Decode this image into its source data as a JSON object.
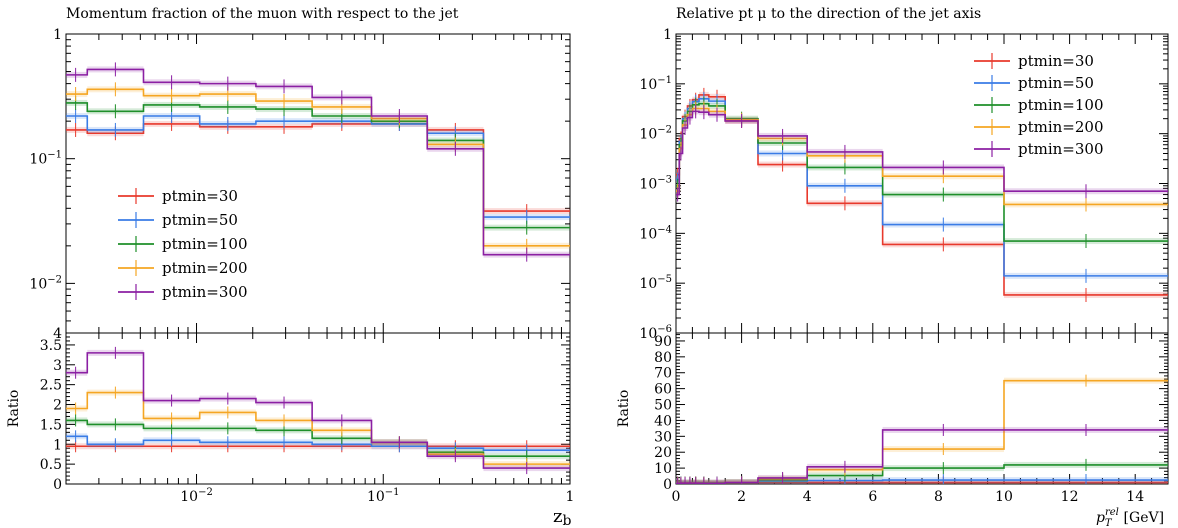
{
  "chart_data": [
    {
      "type": "line",
      "title": "Momentum fraction of the muon with respect to the jet",
      "xlabel": "z_b",
      "ylabel": "",
      "ratio_ylabel": "Ratio",
      "xscale": "log",
      "yscale": "log",
      "xlim": [
        0.002,
        1
      ],
      "ylim": [
        0.004,
        1
      ],
      "ratio_ylim": [
        0,
        3.8
      ],
      "legend_position": "middle-left",
      "x_ticks": [
        "10^-2",
        "10^-1",
        "1"
      ],
      "y_ticks": [
        "10^-2",
        "10^-1",
        "1",
        "4"
      ],
      "ratio_y_ticks": [
        "0",
        "0.5",
        "1",
        "1.5",
        "2",
        "2.5",
        "3",
        "3.5"
      ],
      "bin_edges": [
        0.00195,
        0.0026,
        0.0052,
        0.0104,
        0.0208,
        0.0416,
        0.0865,
        0.172,
        0.344,
        1.0
      ],
      "series": [
        {
          "name": "ptmin=30",
          "color": "#e8392c",
          "values": [
            0.17,
            0.16,
            0.19,
            0.18,
            0.18,
            0.19,
            0.19,
            0.17,
            0.038
          ],
          "ratio": [
            0.95,
            0.95,
            0.95,
            0.95,
            0.95,
            0.95,
            0.95,
            0.95,
            0.95
          ]
        },
        {
          "name": "ptmin=50",
          "color": "#3a7ce6",
          "values": [
            0.22,
            0.17,
            0.22,
            0.19,
            0.2,
            0.2,
            0.19,
            0.16,
            0.034
          ],
          "ratio": [
            1.2,
            1.0,
            1.1,
            1.05,
            1.05,
            1.0,
            0.95,
            0.9,
            0.85
          ]
        },
        {
          "name": "ptmin=100",
          "color": "#1e8f2a",
          "values": [
            0.28,
            0.24,
            0.27,
            0.26,
            0.25,
            0.22,
            0.2,
            0.14,
            0.028
          ],
          "ratio": [
            1.6,
            1.5,
            1.4,
            1.4,
            1.35,
            1.15,
            1.05,
            0.8,
            0.7
          ]
        },
        {
          "name": "ptmin=200",
          "color": "#f5a623",
          "values": [
            0.33,
            0.36,
            0.32,
            0.33,
            0.29,
            0.26,
            0.21,
            0.13,
            0.02
          ],
          "ratio": [
            1.9,
            2.3,
            1.65,
            1.8,
            1.6,
            1.35,
            1.05,
            0.75,
            0.5
          ]
        },
        {
          "name": "ptmin=300",
          "color": "#8b1fa3",
          "values": [
            0.47,
            0.52,
            0.41,
            0.4,
            0.38,
            0.31,
            0.22,
            0.12,
            0.017
          ],
          "ratio": [
            2.8,
            3.3,
            2.1,
            2.15,
            2.05,
            1.6,
            1.05,
            0.7,
            0.4
          ]
        }
      ]
    },
    {
      "type": "line",
      "title": "Relative pt μ to the direction of the jet axis",
      "xlabel": "p_T^rel [GeV]",
      "ylabel": "",
      "ratio_ylabel": "Ratio",
      "xscale": "linear",
      "yscale": "log",
      "xlim": [
        0,
        15
      ],
      "ylim": [
        1e-06,
        1
      ],
      "ratio_ylim": [
        0,
        95
      ],
      "legend_position": "top-right",
      "x_ticks": [
        "0",
        "2",
        "4",
        "6",
        "8",
        "10",
        "12",
        "14"
      ],
      "y_ticks": [
        "1",
        "10^-1",
        "10^-2",
        "10^-3",
        "10^-4",
        "10^-5",
        "10^-6"
      ],
      "ratio_y_ticks": [
        "0",
        "10",
        "20",
        "30",
        "40",
        "50",
        "60",
        "70",
        "80",
        "90"
      ],
      "bin_edges": [
        0,
        0.1,
        0.2,
        0.35,
        0.5,
        0.7,
        1.0,
        1.5,
        2.5,
        4.0,
        6.3,
        10.0,
        15.0
      ],
      "series": [
        {
          "name": "ptmin=30",
          "color": "#e8392c",
          "values": [
            0.0015,
            0.008,
            0.022,
            0.036,
            0.048,
            0.06,
            0.055,
            0.018,
            0.0024,
            0.0004,
            6e-05,
            5.8e-06
          ],
          "ratio": [
            1,
            1,
            1,
            1,
            1,
            1,
            1,
            1,
            1,
            1,
            1,
            1
          ]
        },
        {
          "name": "ptmin=50",
          "color": "#3a7ce6",
          "values": [
            0.0012,
            0.007,
            0.02,
            0.032,
            0.044,
            0.05,
            0.045,
            0.019,
            0.004,
            0.0009,
            0.00015,
            1.4e-05
          ],
          "ratio": [
            0.8,
            0.9,
            0.9,
            0.9,
            0.9,
            0.85,
            0.85,
            1.0,
            1.7,
            2.2,
            2.5,
            2.5
          ]
        },
        {
          "name": "ptmin=100",
          "color": "#1e8f2a",
          "values": [
            0.0009,
            0.006,
            0.018,
            0.028,
            0.038,
            0.04,
            0.036,
            0.02,
            0.0065,
            0.0021,
            0.0006,
            7e-05
          ],
          "ratio": [
            0.6,
            0.75,
            0.8,
            0.8,
            0.8,
            0.7,
            0.65,
            1.1,
            2.7,
            5.3,
            10.0,
            12.0
          ]
        },
        {
          "name": "ptmin=200",
          "color": "#f5a623",
          "values": [
            0.0007,
            0.005,
            0.015,
            0.024,
            0.032,
            0.032,
            0.028,
            0.019,
            0.008,
            0.0036,
            0.0014,
            0.00038
          ],
          "ratio": [
            0.5,
            0.6,
            0.7,
            0.7,
            0.7,
            0.55,
            0.5,
            1.05,
            3.3,
            9.0,
            22.0,
            65.0
          ]
        },
        {
          "name": "ptmin=300",
          "color": "#8b1fa3",
          "values": [
            0.0006,
            0.004,
            0.013,
            0.021,
            0.028,
            0.027,
            0.024,
            0.018,
            0.009,
            0.0043,
            0.0021,
            0.0007
          ],
          "ratio": [
            0.4,
            0.5,
            0.6,
            0.6,
            0.6,
            0.45,
            0.45,
            1.0,
            3.8,
            10.8,
            34.0,
            34.0
          ]
        }
      ]
    }
  ]
}
